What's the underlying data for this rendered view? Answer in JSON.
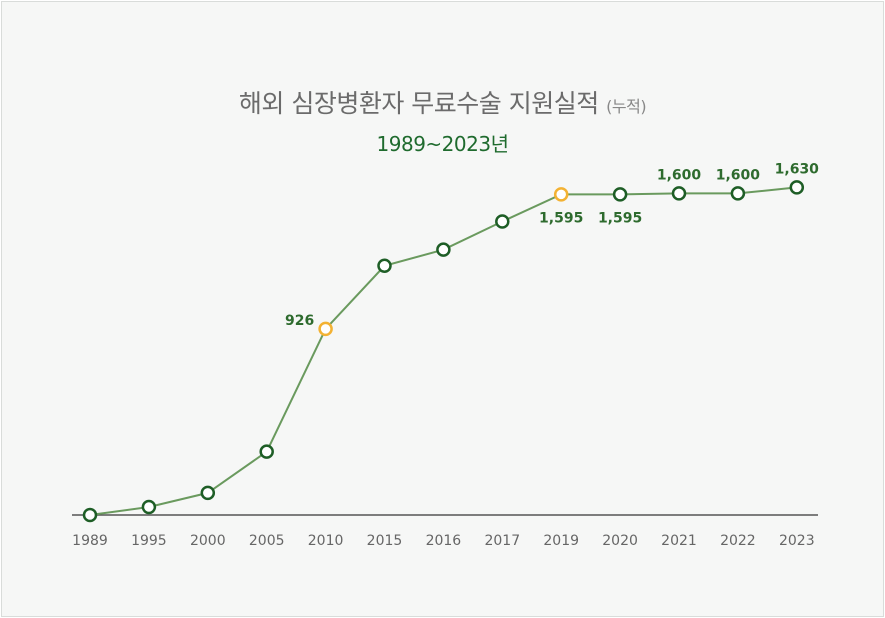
{
  "chart_data": {
    "type": "line",
    "title": "해외 심장병환자 무료수술 지원실적",
    "title_note": "(누적)",
    "subtitle": "1989~2023년",
    "xlabel": "",
    "ylabel": "",
    "ylim": [
      0,
      1700
    ],
    "grid": false,
    "categories": [
      "1989",
      "1995",
      "2000",
      "2005",
      "2010",
      "2015",
      "2016",
      "2017",
      "2019",
      "2020",
      "2021",
      "2022",
      "2023"
    ],
    "values": [
      0,
      40,
      110,
      315,
      926,
      1240,
      1320,
      1460,
      1595,
      1595,
      1600,
      1600,
      1630
    ],
    "data_labels": [
      null,
      null,
      null,
      null,
      "926",
      null,
      null,
      null,
      "1,595",
      "1,595",
      "1,600",
      "1,600",
      "1,630"
    ],
    "label_positions": [
      null,
      null,
      null,
      null,
      "left",
      null,
      null,
      null,
      "below",
      "below",
      "above",
      "above",
      "above"
    ],
    "highlighted": [
      false,
      false,
      false,
      false,
      true,
      false,
      false,
      false,
      true,
      false,
      false,
      false,
      false
    ],
    "colors": {
      "line": "#6a9a5e",
      "marker_stroke": "#1e5e26",
      "marker_highlight": "#f3b233",
      "marker_fill": "#ffffff",
      "axis": "#555555",
      "label": "#2e6b2e"
    }
  }
}
